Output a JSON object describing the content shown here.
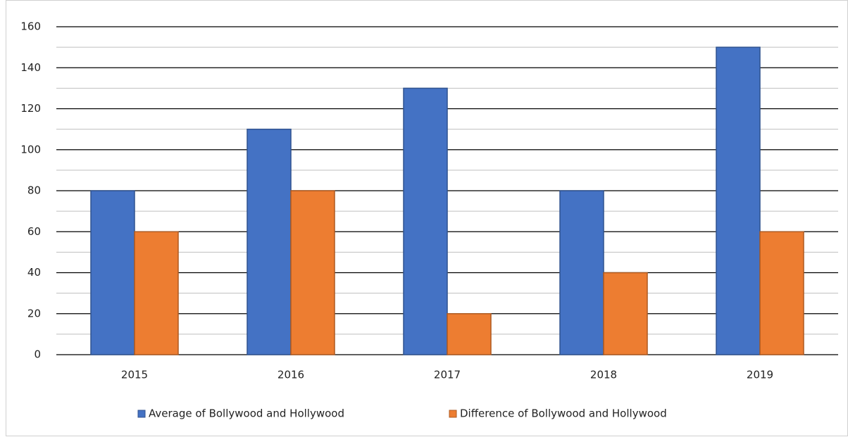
{
  "chart_data": {
    "type": "bar",
    "categories": [
      "2015",
      "2016",
      "2017",
      "2018",
      "2019"
    ],
    "series": [
      {
        "name": "Average of Bollywood and Hollywood",
        "color": "#4472c4",
        "values": [
          80,
          110,
          130,
          80,
          150
        ]
      },
      {
        "name": "Difference of Bollywood and Hollywood",
        "color": "#ed7d31",
        "values": [
          60,
          80,
          20,
          40,
          60
        ]
      }
    ],
    "ylim": [
      0,
      160
    ],
    "yticks": [
      0,
      20,
      40,
      60,
      80,
      100,
      120,
      140,
      160
    ],
    "yminorticks": [
      10,
      30,
      50,
      70,
      90,
      110,
      130,
      150
    ],
    "grid": true,
    "legend": "bottom"
  }
}
